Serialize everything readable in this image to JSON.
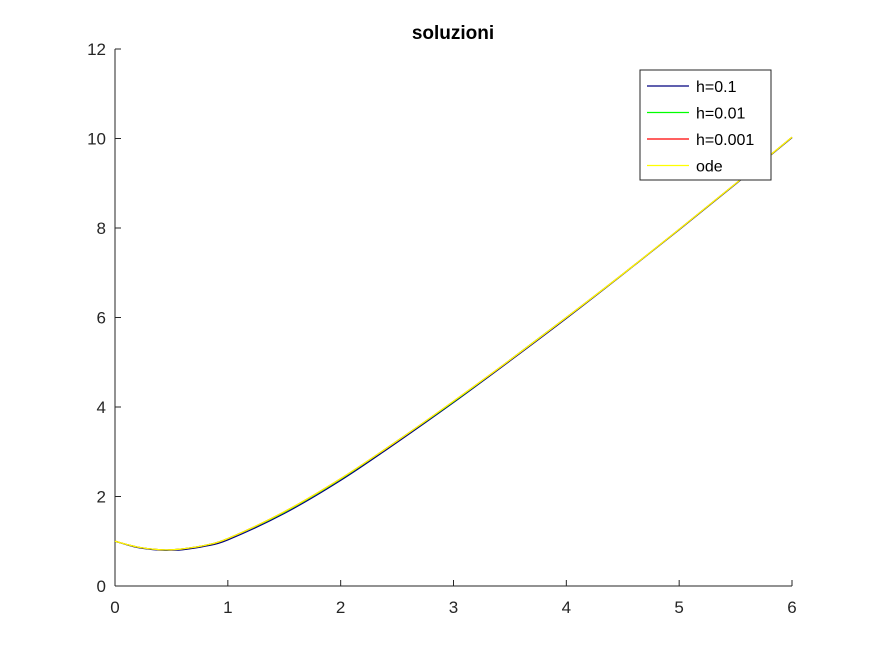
{
  "chart_data": {
    "type": "line",
    "title": "soluzioni",
    "xlabel": "",
    "ylabel": "",
    "xlim": [
      0,
      6
    ],
    "ylim": [
      0,
      12
    ],
    "xticks": [
      "0",
      "1",
      "2",
      "3",
      "4",
      "5",
      "6"
    ],
    "yticks": [
      "0",
      "2",
      "4",
      "6",
      "8",
      "10",
      "12"
    ],
    "grid": false,
    "legend_position": "top-right",
    "series": [
      {
        "name": "h=0.1",
        "color": "#00007f",
        "x": [
          0,
          0.2,
          0.4,
          0.5,
          0.6,
          0.8,
          1.0,
          1.5,
          2.0,
          2.5,
          3.0,
          3.5,
          4.0,
          4.5,
          5.0,
          5.5,
          6.0
        ],
        "y": [
          1.0,
          0.86,
          0.8,
          0.8,
          0.81,
          0.89,
          1.03,
          1.62,
          2.36,
          3.21,
          4.1,
          5.03,
          5.98,
          6.96,
          7.96,
          8.98,
          10.02
        ]
      },
      {
        "name": "h=0.01",
        "color": "#00ff00",
        "x": [
          0,
          0.2,
          0.4,
          0.5,
          0.6,
          0.8,
          1.0,
          1.5,
          2.0,
          2.5,
          3.0,
          3.5,
          4.0,
          4.5,
          5.0,
          5.5,
          6.0
        ],
        "y": [
          1.0,
          0.87,
          0.81,
          0.81,
          0.83,
          0.91,
          1.06,
          1.65,
          2.39,
          3.24,
          4.12,
          5.05,
          6.0,
          6.97,
          7.97,
          8.99,
          10.03
        ]
      },
      {
        "name": "h=0.001",
        "color": "#ff0000",
        "x": [
          0,
          0.2,
          0.4,
          0.5,
          0.6,
          0.8,
          1.0,
          1.5,
          2.0,
          2.5,
          3.0,
          3.5,
          4.0,
          4.5,
          5.0,
          5.5,
          6.0
        ],
        "y": [
          1.0,
          0.87,
          0.81,
          0.81,
          0.83,
          0.91,
          1.06,
          1.66,
          2.4,
          3.24,
          4.13,
          5.05,
          6.0,
          6.97,
          7.97,
          8.99,
          10.03
        ]
      },
      {
        "name": "ode",
        "color": "#ffff00",
        "x": [
          0,
          0.2,
          0.4,
          0.5,
          0.6,
          0.8,
          1.0,
          1.5,
          2.0,
          2.5,
          3.0,
          3.5,
          4.0,
          4.5,
          5.0,
          5.5,
          6.0
        ],
        "y": [
          1.0,
          0.87,
          0.81,
          0.81,
          0.83,
          0.91,
          1.06,
          1.66,
          2.4,
          3.24,
          4.13,
          5.05,
          6.0,
          6.97,
          7.97,
          8.99,
          10.03
        ]
      }
    ]
  }
}
